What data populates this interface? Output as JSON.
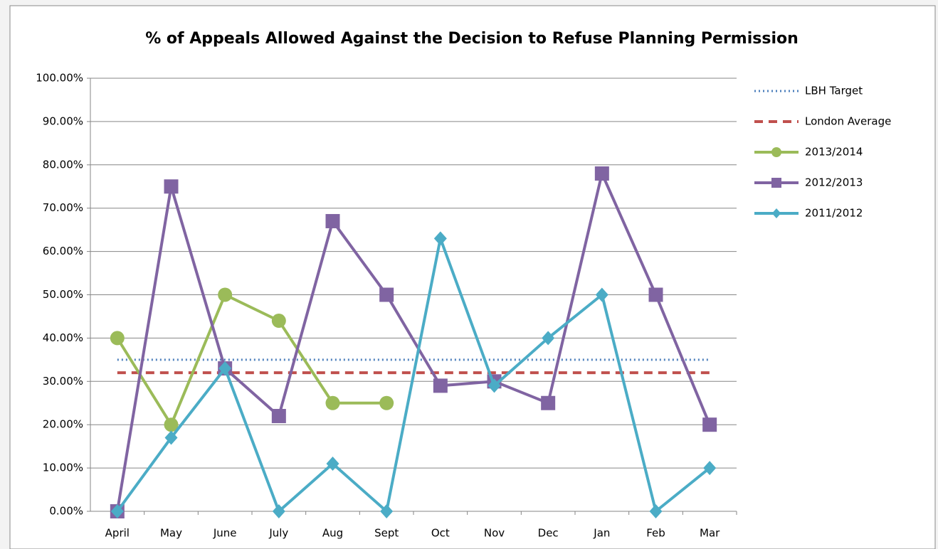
{
  "chart_data": {
    "type": "line",
    "title": "% of Appeals Allowed Against  the Decision to Refuse Planning Permission",
    "categories": [
      "April",
      "May",
      "June",
      "July",
      "Aug",
      "Sept",
      "Oct",
      "Nov",
      "Dec",
      "Jan",
      "Feb",
      "Mar"
    ],
    "series": [
      {
        "name": "LBH Target",
        "color": "#4f81bd",
        "dash": "dotted",
        "marker": "none",
        "values": [
          35,
          35,
          35,
          35,
          35,
          35,
          35,
          35,
          35,
          35,
          35,
          35
        ]
      },
      {
        "name": "London Average",
        "color": "#c0504d",
        "dash": "dashed",
        "marker": "none",
        "values": [
          32,
          32,
          32,
          32,
          32,
          32,
          32,
          32,
          32,
          32,
          32,
          32
        ]
      },
      {
        "name": "2013/2014",
        "color": "#9bbb59",
        "dash": "solid",
        "marker": "circle",
        "values": [
          40,
          20,
          50,
          44,
          25,
          25,
          null,
          null,
          null,
          null,
          null,
          null
        ]
      },
      {
        "name": "2012/2013",
        "color": "#8064a2",
        "dash": "solid",
        "marker": "square",
        "values": [
          0,
          75,
          33,
          22,
          67,
          50,
          29,
          30,
          25,
          78,
          50,
          20
        ]
      },
      {
        "name": "2011/2012",
        "color": "#4bacc6",
        "dash": "solid",
        "marker": "diamond",
        "values": [
          0,
          17,
          33,
          0,
          11,
          0,
          63,
          29,
          40,
          50,
          0,
          10
        ]
      }
    ],
    "ylim": [
      0,
      100
    ],
    "yticks": [
      {
        "value": 0,
        "label": "0.00%"
      },
      {
        "value": 10,
        "label": "10.00%"
      },
      {
        "value": 20,
        "label": "20.00%"
      },
      {
        "value": 30,
        "label": "30.00%"
      },
      {
        "value": 40,
        "label": "40.00%"
      },
      {
        "value": 50,
        "label": "50.00%"
      },
      {
        "value": 60,
        "label": "60.00%"
      },
      {
        "value": 70,
        "label": "70.00%"
      },
      {
        "value": 80,
        "label": "80.00%"
      },
      {
        "value": 90,
        "label": "90.00%"
      },
      {
        "value": 100,
        "label": "100.00%"
      }
    ],
    "grid": true,
    "legend": "right"
  }
}
